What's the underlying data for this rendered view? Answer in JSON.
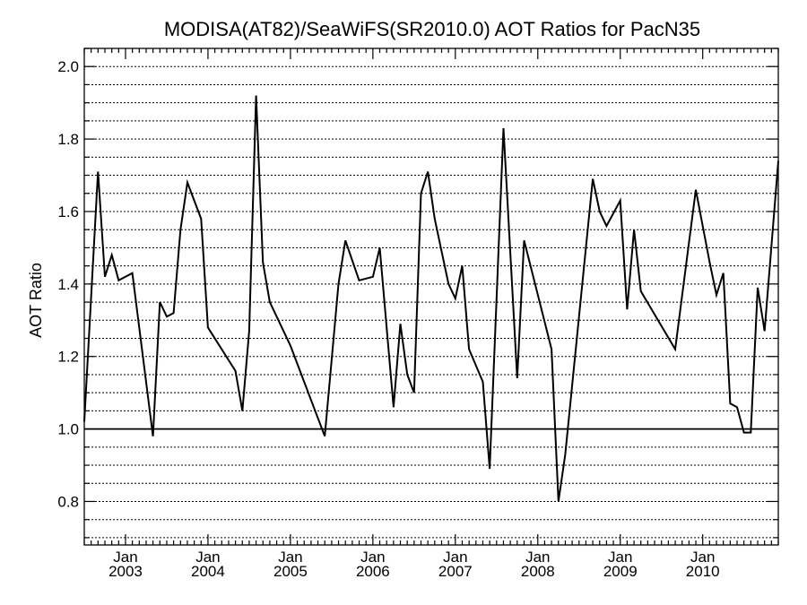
{
  "chart_data": {
    "type": "line",
    "title": "MODISA(AT82)/SeaWiFS(SR2010.0)  AOT Ratios for PacN35",
    "xlabel": "",
    "ylabel": "AOT Ratio",
    "ylim": [
      0.68,
      2.05
    ],
    "yticks": [
      0.8,
      1.0,
      1.2,
      1.4,
      1.6,
      1.8,
      2.0
    ],
    "ytick_labels": [
      "0.8",
      "1.0",
      "1.2",
      "1.4",
      "1.6",
      "1.8",
      "2.0"
    ],
    "xlim": [
      "2002-07",
      "2010-12"
    ],
    "xticks": [
      {
        "date": "2003-01",
        "month": "Jan",
        "year": "2003"
      },
      {
        "date": "2004-01",
        "month": "Jan",
        "year": "2004"
      },
      {
        "date": "2005-01",
        "month": "Jan",
        "year": "2005"
      },
      {
        "date": "2006-01",
        "month": "Jan",
        "year": "2006"
      },
      {
        "date": "2007-01",
        "month": "Jan",
        "year": "2007"
      },
      {
        "date": "2008-01",
        "month": "Jan",
        "year": "2008"
      },
      {
        "date": "2009-01",
        "month": "Jan",
        "year": "2009"
      },
      {
        "date": "2010-01",
        "month": "Jan",
        "year": "2010"
      }
    ],
    "grid": "horizontal dotted",
    "reference_line": 1.0,
    "series": [
      {
        "name": "",
        "color": "#000000",
        "points": [
          [
            "2002-07",
            1.02
          ],
          [
            "2002-09",
            1.71
          ],
          [
            "2002-10",
            1.42
          ],
          [
            "2002-11",
            1.48
          ],
          [
            "2002-12",
            1.41
          ],
          [
            "2003-02",
            1.43
          ],
          [
            "2003-05",
            0.98
          ],
          [
            "2003-06",
            1.35
          ],
          [
            "2003-07",
            1.31
          ],
          [
            "2003-08",
            1.32
          ],
          [
            "2003-09",
            1.55
          ],
          [
            "2003-10",
            1.68
          ],
          [
            "2003-12",
            1.58
          ],
          [
            "2004-01",
            1.28
          ],
          [
            "2004-05",
            1.16
          ],
          [
            "2004-06",
            1.05
          ],
          [
            "2004-07",
            1.27
          ],
          [
            "2004-08",
            1.92
          ],
          [
            "2004-09",
            1.46
          ],
          [
            "2004-10",
            1.35
          ],
          [
            "2005-01",
            1.23
          ],
          [
            "2005-06",
            0.98
          ],
          [
            "2005-08",
            1.4
          ],
          [
            "2005-09",
            1.52
          ],
          [
            "2005-11",
            1.41
          ],
          [
            "2006-01",
            1.42
          ],
          [
            "2006-02",
            1.5
          ],
          [
            "2006-04",
            1.06
          ],
          [
            "2006-05",
            1.29
          ],
          [
            "2006-06",
            1.15
          ],
          [
            "2006-07",
            1.1
          ],
          [
            "2006-08",
            1.65
          ],
          [
            "2006-09",
            1.71
          ],
          [
            "2006-10",
            1.58
          ],
          [
            "2006-12",
            1.4
          ],
          [
            "2007-01",
            1.36
          ],
          [
            "2007-02",
            1.45
          ],
          [
            "2007-03",
            1.22
          ],
          [
            "2007-05",
            1.13
          ],
          [
            "2007-06",
            0.89
          ],
          [
            "2007-08",
            1.83
          ],
          [
            "2007-10",
            1.14
          ],
          [
            "2007-11",
            1.52
          ],
          [
            "2008-03",
            1.22
          ],
          [
            "2008-04",
            0.8
          ],
          [
            "2008-05",
            0.93
          ],
          [
            "2008-09",
            1.69
          ],
          [
            "2008-10",
            1.6
          ],
          [
            "2008-11",
            1.56
          ],
          [
            "2009-01",
            1.63
          ],
          [
            "2009-02",
            1.33
          ],
          [
            "2009-03",
            1.55
          ],
          [
            "2009-04",
            1.38
          ],
          [
            "2009-09",
            1.22
          ],
          [
            "2009-12",
            1.66
          ],
          [
            "2010-02",
            1.46
          ],
          [
            "2010-03",
            1.37
          ],
          [
            "2010-04",
            1.43
          ],
          [
            "2010-05",
            1.07
          ],
          [
            "2010-06",
            1.06
          ],
          [
            "2010-07",
            0.99
          ],
          [
            "2010-08",
            0.99
          ],
          [
            "2010-09",
            1.39
          ],
          [
            "2010-10",
            1.27
          ],
          [
            "2010-12",
            1.74
          ]
        ]
      }
    ]
  }
}
